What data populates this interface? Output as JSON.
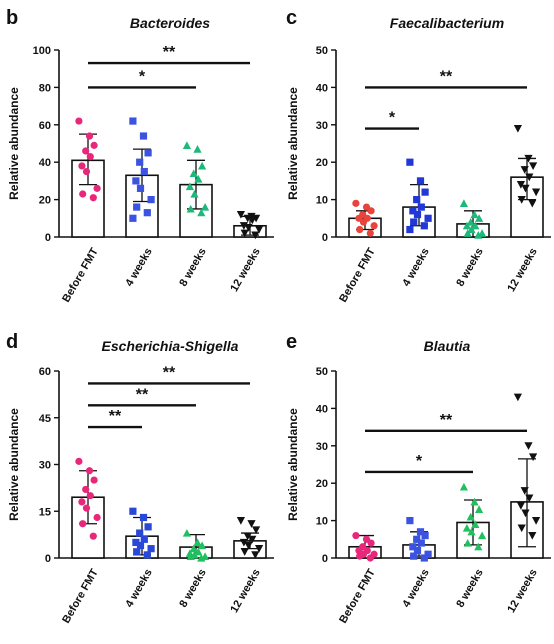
{
  "panels": [
    {
      "chart_data": {
        "type": "bar",
        "panel_label": "b",
        "title": "Bacteroides",
        "ylabel": "Relative abundance",
        "ylim": [
          0,
          100
        ],
        "yticks": [
          0,
          20,
          40,
          60,
          80,
          100
        ],
        "categories": [
          "Before FMT",
          "4 weeks",
          "8 weeks",
          "12 weeks"
        ],
        "means": [
          41,
          33,
          28,
          6
        ],
        "sd_upper": [
          55,
          47,
          41,
          11
        ],
        "sd_lower": [
          28,
          19,
          15,
          1
        ],
        "points": [
          [
            62,
            54,
            49,
            46,
            43,
            38,
            35,
            26,
            23,
            21
          ],
          [
            62,
            54,
            45,
            40,
            35,
            30,
            26,
            20,
            16,
            13,
            10
          ],
          [
            49,
            47,
            38,
            34,
            31,
            27,
            23,
            16,
            15,
            13
          ],
          [
            12,
            11,
            10,
            10,
            9,
            6,
            5,
            4,
            2,
            1
          ]
        ],
        "markers": [
          "circle",
          "square",
          "triangle-up",
          "triangle-down"
        ],
        "colors": [
          "#e8277a",
          "#3b53e0",
          "#1db87a",
          "#111111"
        ],
        "significance": [
          {
            "from": 0,
            "to": 2,
            "y": 80,
            "label": "*"
          },
          {
            "from": 0,
            "to": 3,
            "y": 93,
            "label": "**"
          }
        ]
      }
    },
    {
      "chart_data": {
        "type": "bar",
        "panel_label": "c",
        "title": "Faecalibacterium",
        "ylabel": "Relative abundance",
        "ylim": [
          0,
          50
        ],
        "yticks": [
          0,
          10,
          20,
          30,
          40,
          50
        ],
        "categories": [
          "Before FMT",
          "4 weeks",
          "8 weeks",
          "12 weeks"
        ],
        "means": [
          5,
          8,
          3.5,
          16
        ],
        "sd_upper": [
          7,
          14,
          7,
          21
        ],
        "sd_lower": [
          2,
          3,
          0,
          10
        ],
        "points": [
          [
            9,
            8,
            7,
            6,
            5,
            5,
            4,
            3,
            2,
            1
          ],
          [
            20,
            15,
            12,
            10,
            8,
            7,
            6,
            5,
            4,
            3,
            2
          ],
          [
            9,
            6,
            5,
            4,
            3,
            3,
            2,
            1,
            1,
            0.5
          ],
          [
            29,
            21,
            19,
            18,
            16,
            14,
            13,
            12,
            10,
            9
          ]
        ],
        "markers": [
          "circle",
          "square",
          "triangle-up",
          "triangle-down"
        ],
        "colors": [
          "#e8443d",
          "#2137d8",
          "#1db87a",
          "#111111"
        ],
        "significance": [
          {
            "from": 0,
            "to": 1,
            "y": 29,
            "label": "*"
          },
          {
            "from": 0,
            "to": 3,
            "y": 40,
            "label": "**"
          }
        ]
      }
    },
    {
      "chart_data": {
        "type": "bar",
        "panel_label": "d",
        "title": "Escherichia-Shigella",
        "ylabel": "Relative abundance",
        "ylim": [
          0,
          60
        ],
        "yticks": [
          0,
          15,
          30,
          45,
          60
        ],
        "categories": [
          "Before FMT",
          "4 weeks",
          "8 weeks",
          "12 weeks"
        ],
        "means": [
          19.5,
          7,
          3.5,
          5.5
        ],
        "sd_upper": [
          28,
          13,
          7.5,
          8
        ],
        "sd_lower": [
          11,
          1,
          0,
          3
        ],
        "points": [
          [
            31,
            28,
            25,
            22,
            20,
            18,
            16,
            13,
            11,
            7
          ],
          [
            15,
            13,
            10,
            8,
            6,
            5,
            4,
            3,
            2,
            1
          ],
          [
            8,
            5,
            4,
            3,
            2,
            1.5,
            1,
            0.5,
            0.5,
            0
          ],
          [
            12,
            11,
            9,
            7,
            6,
            5,
            4,
            3,
            2,
            1
          ]
        ],
        "markers": [
          "circle",
          "square",
          "triangle-up",
          "triangle-down"
        ],
        "colors": [
          "#e8277a",
          "#2a48d8",
          "#20c060",
          "#111111"
        ],
        "significance": [
          {
            "from": 0,
            "to": 1,
            "y": 42,
            "label": "**"
          },
          {
            "from": 0,
            "to": 2,
            "y": 49,
            "label": "**"
          },
          {
            "from": 0,
            "to": 3,
            "y": 56,
            "label": "**"
          }
        ]
      }
    },
    {
      "chart_data": {
        "type": "bar",
        "panel_label": "e",
        "title": "Blautia",
        "ylabel": "Relative abundance",
        "ylim": [
          0,
          50
        ],
        "yticks": [
          0,
          10,
          20,
          30,
          40,
          50
        ],
        "categories": [
          "Before FMT",
          "4 weeks",
          "8 weeks",
          "12 weeks"
        ],
        "means": [
          3,
          3.5,
          9.5,
          15
        ],
        "sd_upper": [
          6,
          7,
          15.5,
          26.5
        ],
        "sd_lower": [
          0,
          0.5,
          3.5,
          3
        ],
        "points": [
          [
            6,
            5,
            4,
            3,
            2,
            2,
            1,
            1,
            0.5,
            0
          ],
          [
            10,
            7,
            6,
            5,
            4,
            3,
            2,
            1,
            0.5,
            0
          ],
          [
            19,
            15,
            13,
            11,
            9,
            8,
            7,
            6,
            4,
            3
          ],
          [
            43,
            30,
            27,
            18,
            16,
            14,
            12,
            10,
            8,
            6
          ]
        ],
        "markers": [
          "circle",
          "square",
          "triangle-up",
          "triangle-down"
        ],
        "colors": [
          "#e8277a",
          "#3b53e0",
          "#20c060",
          "#111111"
        ],
        "significance": [
          {
            "from": 0,
            "to": 2,
            "y": 23,
            "label": "*"
          },
          {
            "from": 0,
            "to": 3,
            "y": 34,
            "label": "**"
          }
        ]
      }
    }
  ]
}
